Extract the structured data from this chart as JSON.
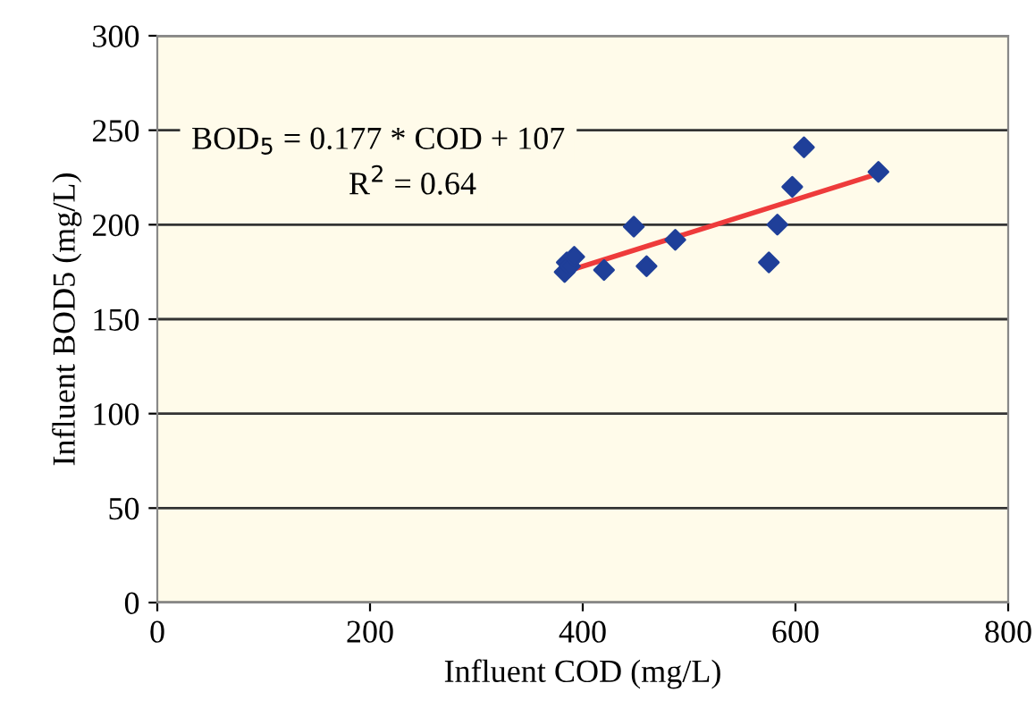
{
  "chart_data": {
    "type": "scatter",
    "xlabel": "Influent COD (mg/L)",
    "ylabel": "Influent BOD5 (mg/L)",
    "x": [
      383,
      385,
      388,
      392,
      420,
      448,
      460,
      487,
      575,
      583,
      597,
      608,
      678
    ],
    "series": [
      {
        "color": "#1f3f99",
        "marker": "diamond",
        "values": [
          175,
          180,
          178,
          183,
          176,
          199,
          178,
          192,
          180,
          200,
          220,
          241,
          228
        ]
      },
      {
        "type": "line",
        "color": "#ee3b3b",
        "marker": "none",
        "x": [
          383,
          678
        ],
        "values": [
          175,
          227
        ]
      }
    ],
    "xlim": [
      0,
      800
    ],
    "ylim": [
      0,
      300
    ],
    "xticks": [
      0,
      200,
      400,
      600,
      800
    ],
    "yticks": [
      0,
      50,
      100,
      150,
      200,
      250,
      300
    ],
    "grid": "y",
    "annotations": [
      {
        "text": "BOD$_{5}$ = 0.177 * COD + 107"
      },
      {
        "text": "R$^{2}$ = 0.64"
      }
    ]
  }
}
